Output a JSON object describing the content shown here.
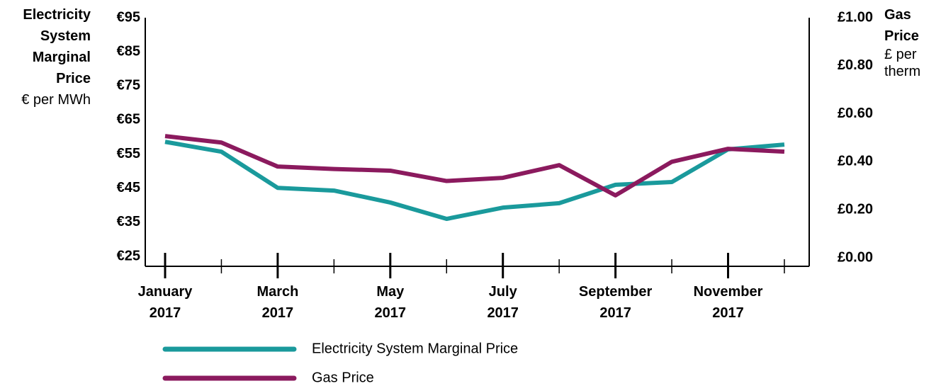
{
  "chart_data": {
    "type": "line",
    "y_label": "Electricity System Marginal Price",
    "y_unit": "€ per MWh",
    "y2_label": "Gas Price",
    "y2_unit": "£ per therm",
    "categories": [
      "January 2017",
      null,
      "March 2017",
      null,
      "May 2017",
      null,
      "July 2017",
      null,
      "September 2017",
      null,
      "November 2017",
      null
    ],
    "series": [
      {
        "name": "Electricity System Marginal Price",
        "color": "#1a9a9c",
        "axis": "y",
        "values": [
          58.6,
          55.7,
          45.1,
          44.3,
          40.8,
          36.0,
          39.3,
          40.6,
          46.0,
          46.8,
          56.4,
          57.8
        ]
      },
      {
        "name": "Gas Price",
        "color": "#8b1a5e",
        "axis": "y2",
        "values": [
          0.507,
          0.48,
          0.38,
          0.37,
          0.363,
          0.32,
          0.333,
          0.386,
          0.26,
          0.4,
          0.454,
          0.442
        ]
      }
    ],
    "ylim": [
      25,
      95
    ],
    "yticks": [
      {
        "value": 25,
        "label": "€25"
      },
      {
        "value": 35,
        "label": "€35"
      },
      {
        "value": 45,
        "label": "€45"
      },
      {
        "value": 55,
        "label": "€55"
      },
      {
        "value": 65,
        "label": "€65"
      },
      {
        "value": 75,
        "label": "€75"
      },
      {
        "value": 85,
        "label": "€85"
      },
      {
        "value": 95,
        "label": "€95"
      }
    ],
    "y2lim": [
      0,
      1
    ],
    "y2ticks": [
      {
        "value": 0,
        "label": "£0.00"
      },
      {
        "value": 0.2,
        "label": "£0.20"
      },
      {
        "value": 0.4,
        "label": "£0.40"
      },
      {
        "value": 0.6,
        "label": "£0.60"
      },
      {
        "value": 0.8,
        "label": "£0.80"
      },
      {
        "value": 1,
        "label": "£1.00"
      }
    ],
    "grid": false,
    "legend": "bottom"
  }
}
